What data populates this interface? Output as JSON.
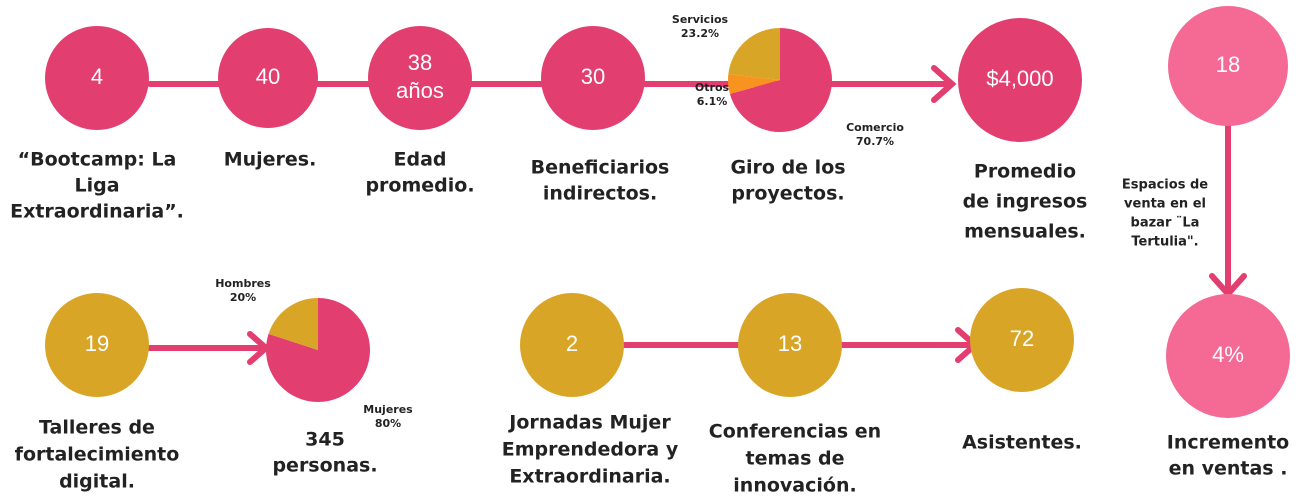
{
  "nodes": [
    {
      "value": [
        "4"
      ],
      "label": [
        "“Bootcamp: La",
        "Liga",
        "Extraordinaria”."
      ],
      "color": "#e23e70"
    },
    {
      "value": [
        "40"
      ],
      "label": [
        "Mujeres."
      ],
      "color": "#e23e70"
    },
    {
      "value": [
        "38",
        "años"
      ],
      "label": [
        "Edad",
        "promedio."
      ],
      "color": "#e23e70"
    },
    {
      "value": [
        "30"
      ],
      "label": [
        "Beneficiarios",
        "indirectos."
      ],
      "color": "#e23e70"
    },
    {
      "value": [
        "$4,000"
      ],
      "label": [
        "Promedio",
        "de ingresos",
        "mensuales."
      ],
      "color": "#e23e70"
    },
    {
      "value": [
        "18"
      ],
      "label": [
        "Espacios de",
        "venta en el",
        "bazar ¨La",
        "Tertulia\"."
      ],
      "color": "#f46a95"
    },
    {
      "value": [
        "4%"
      ],
      "label": [
        "Incremento",
        "en ventas ."
      ],
      "color": "#f46a95"
    },
    {
      "value": [
        "19"
      ],
      "label": [
        "Talleres de",
        "fortalecimiento",
        "digital."
      ],
      "color": "#d9a526"
    },
    {
      "value": [
        "2"
      ],
      "label": [
        "Jornadas Mujer",
        "Emprendedora y",
        "Extraordinaria."
      ],
      "color": "#d9a526"
    },
    {
      "value": [
        "13"
      ],
      "label": [
        "Conferencias en",
        "temas de",
        "innovación."
      ],
      "color": "#d9a526"
    },
    {
      "value": [
        "72"
      ],
      "label": [
        "Asistentes."
      ],
      "color": "#d9a526"
    }
  ],
  "pies": [
    {
      "label": [
        "Giro de los",
        "proyectos."
      ],
      "slices": [
        {
          "name": "Comercio",
          "value": 70.7,
          "value_label": "70.7%",
          "color": "#e23e70"
        },
        {
          "name": "Otros",
          "value": 6.1,
          "value_label": "6.1%",
          "color": "#f7931e"
        },
        {
          "name": "Servicios",
          "value": 23.2,
          "value_label": "23.2%",
          "color": "#d9a526"
        }
      ]
    },
    {
      "label": [
        "345",
        "personas."
      ],
      "slices": [
        {
          "name": "Mujeres",
          "value": 80,
          "value_label": "80%",
          "color": "#e23e70"
        },
        {
          "name": "Hombres",
          "value": 20,
          "value_label": "20%",
          "color": "#d9a526"
        }
      ]
    }
  ]
}
